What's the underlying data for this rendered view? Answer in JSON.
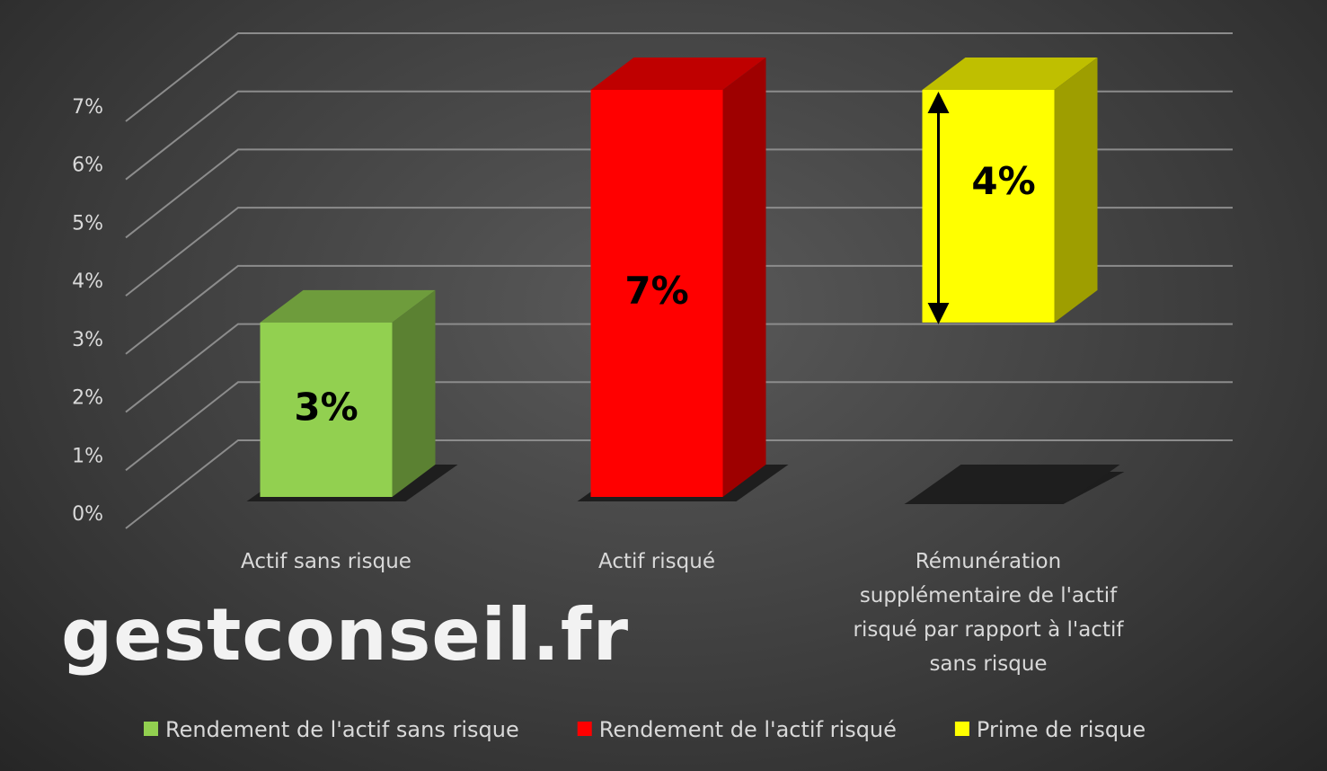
{
  "chart_data": {
    "type": "bar3d-stacked",
    "categories": [
      "Actif sans risque",
      "Actif risqué",
      "Rémunération supplémentaire de l'actif risqué par rapport à l'actif sans risque"
    ],
    "series": [
      {
        "values": [
          null,
          null,
          3
        ],
        "color": "none"
      },
      {
        "name": "Rendement de l'actif sans risque",
        "color": "#92d050",
        "values": [
          3,
          null,
          null
        ],
        "value_labels": [
          "3%",
          null,
          null
        ]
      },
      {
        "name": "Rendement de l'actif risqué",
        "color": "#ff0000",
        "values": [
          null,
          7,
          null
        ],
        "value_labels": [
          null,
          "7%",
          null
        ]
      },
      {
        "name": "Prime de risque",
        "color": "#ffff00",
        "values": [
          null,
          null,
          4
        ],
        "value_labels": [
          null,
          null,
          "4%"
        ]
      }
    ],
    "ylim": [
      0,
      8
    ],
    "yticks": [
      {
        "value": 0,
        "label": "0%"
      },
      {
        "value": 1,
        "label": "1%"
      },
      {
        "value": 2,
        "label": "2%"
      },
      {
        "value": 3,
        "label": "3%"
      },
      {
        "value": 4,
        "label": "4%"
      },
      {
        "value": 5,
        "label": "5%"
      },
      {
        "value": 6,
        "label": "6%"
      },
      {
        "value": 7,
        "label": "7%"
      }
    ],
    "grid": true,
    "legend": "bottom",
    "watermark": "gestconseil.fr"
  }
}
